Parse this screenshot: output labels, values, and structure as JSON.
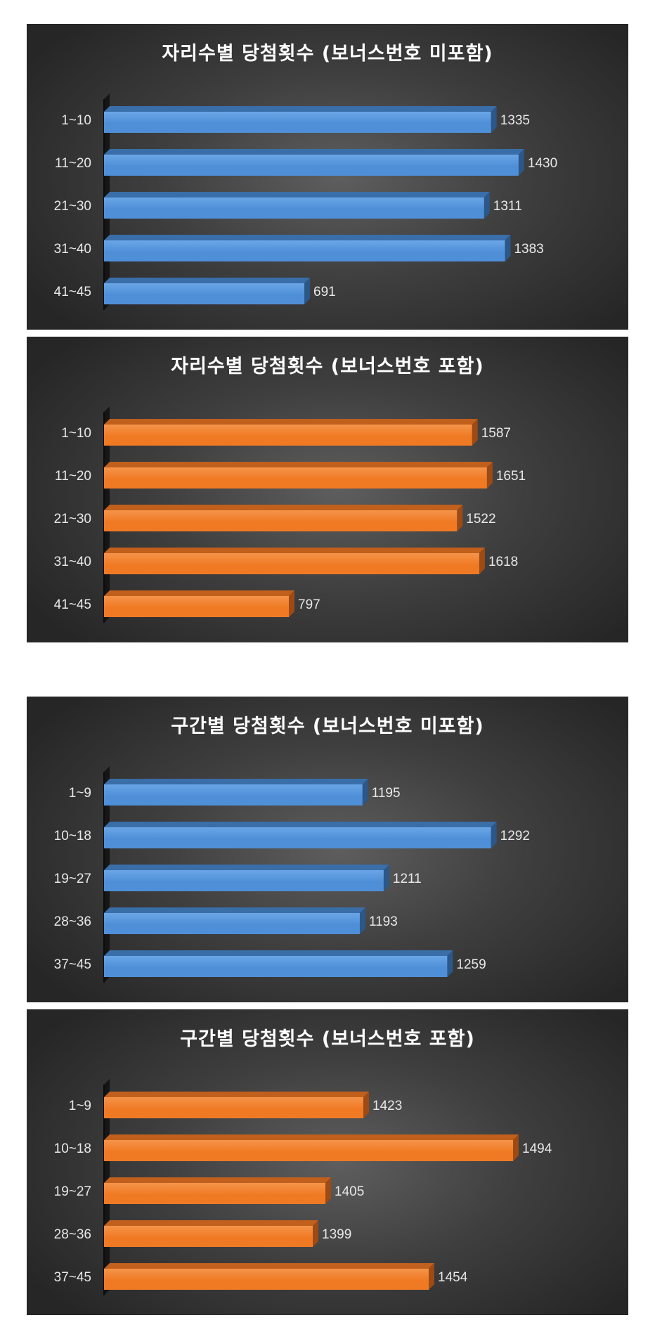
{
  "colors": {
    "blue": {
      "front": "#4f8fd8",
      "top": "#3a6ea9",
      "side": "#2b5789",
      "highlight": "#6aa6e6"
    },
    "orange": {
      "front": "#f07a24",
      "top": "#c15f1c",
      "side": "#9d4a14",
      "highlight": "#f5944a"
    }
  },
  "chart_data": [
    {
      "type": "bar",
      "orientation": "horizontal",
      "title": "자리수별 당첨횟수 (보너스번호 미포함)",
      "color": "blue",
      "categories": [
        "1~10",
        "11~20",
        "21~30",
        "31~40",
        "41~45"
      ],
      "values": [
        1335,
        1430,
        1311,
        1383,
        691
      ],
      "xlim": [
        0,
        1600
      ],
      "grid": false,
      "legend": "none"
    },
    {
      "type": "bar",
      "orientation": "horizontal",
      "title": "자리수별 당첨횟수 (보너스번호 포함)",
      "color": "orange",
      "categories": [
        "1~10",
        "11~20",
        "21~30",
        "31~40",
        "41~45"
      ],
      "values": [
        1587,
        1651,
        1522,
        1618,
        797
      ],
      "xlim": [
        0,
        2000
      ],
      "grid": false,
      "legend": "none"
    },
    {
      "type": "bar",
      "orientation": "horizontal",
      "title": "구간별 당첨횟수 (보너스번호 미포함)",
      "color": "blue",
      "categories": [
        "1~9",
        "10~18",
        "19~27",
        "28~36",
        "37~45"
      ],
      "values": [
        1195,
        1292,
        1211,
        1193,
        1259
      ],
      "xlim": [
        1000,
        1350
      ],
      "grid": false,
      "legend": "none"
    },
    {
      "type": "bar",
      "orientation": "horizontal",
      "title": "구간별 당첨횟수 (보너스번호 포함)",
      "color": "orange",
      "categories": [
        "1~9",
        "10~18",
        "19~27",
        "28~36",
        "37~45"
      ],
      "values": [
        1423,
        1494,
        1405,
        1399,
        1454
      ],
      "xlim": [
        1300,
        1520
      ],
      "grid": false,
      "legend": "none"
    }
  ]
}
